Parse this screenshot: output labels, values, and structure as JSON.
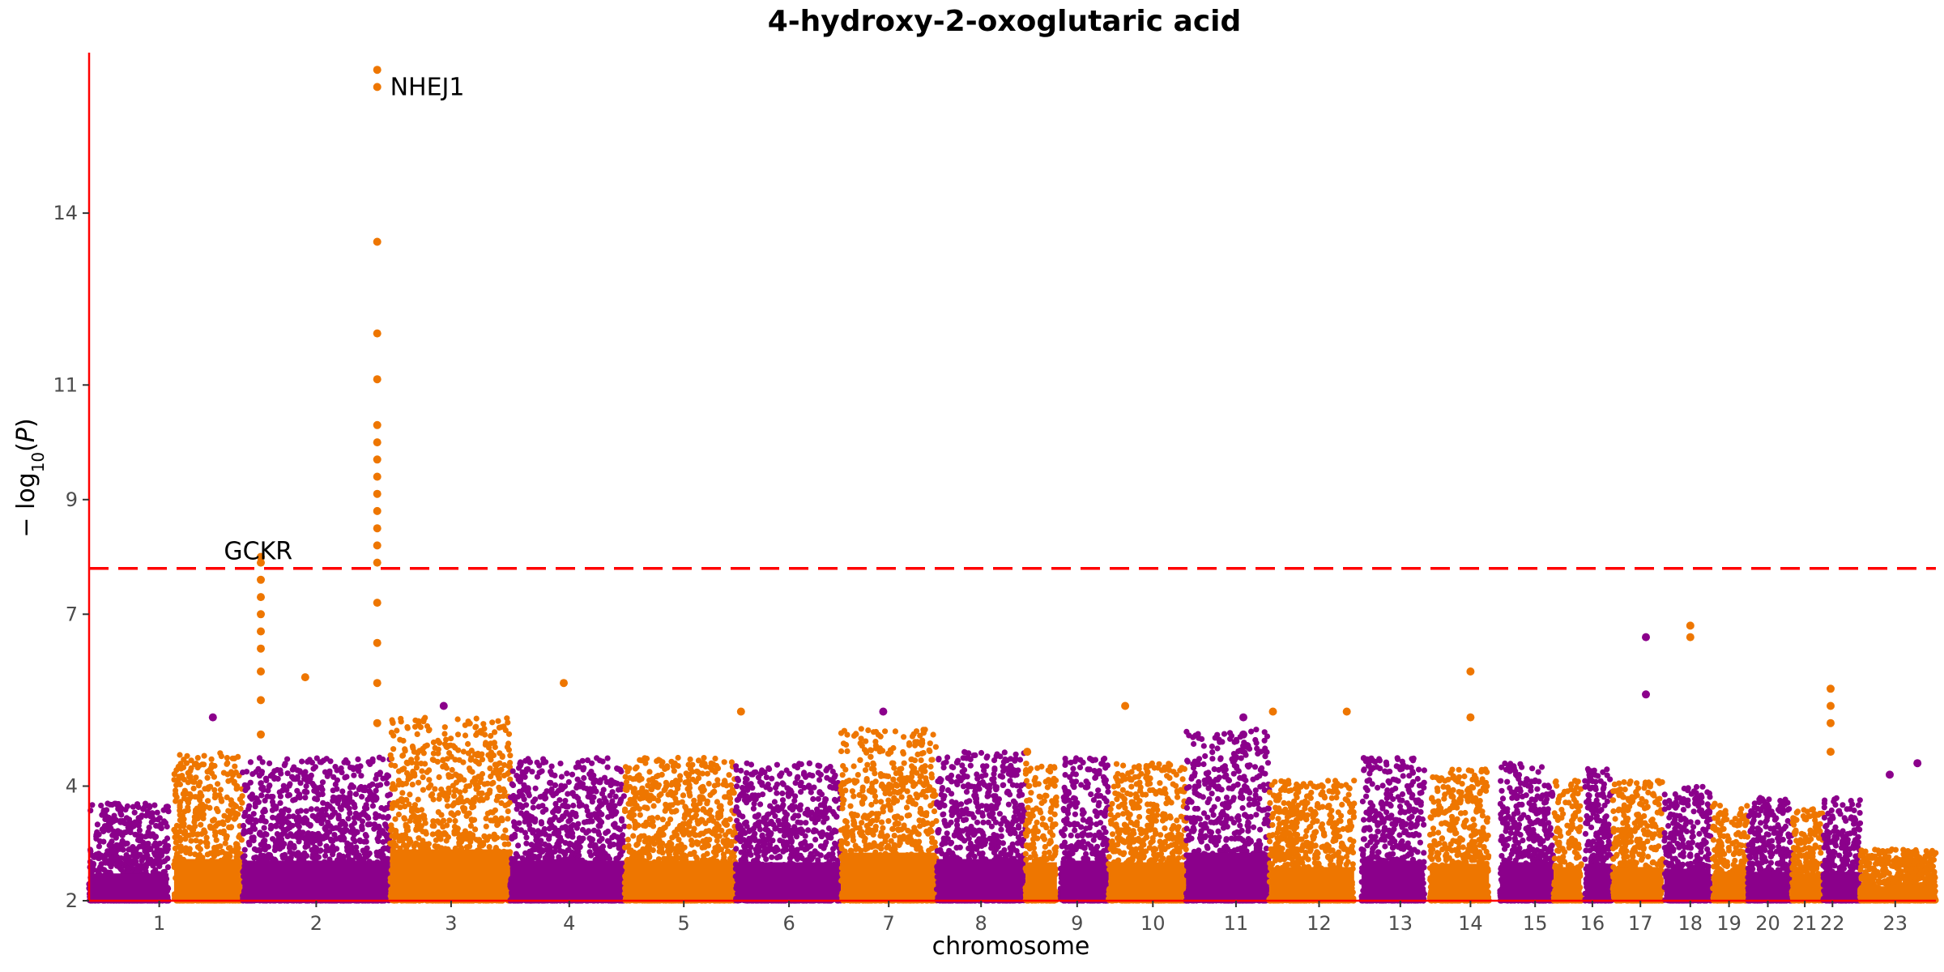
{
  "chart_data": {
    "type": "scatter",
    "subtype": "manhattan",
    "title": "4-hydroxy-2-oxoglutaric acid",
    "xlabel": "chromosome",
    "ylabel": "−log10(P)",
    "ylim": [
      2,
      16.8
    ],
    "yticks": [
      2,
      4,
      7,
      9,
      11,
      14
    ],
    "significance_line": 7.8,
    "colors": {
      "odd": "#8B008B",
      "even": "#EE7600",
      "axis": "#ff0000",
      "threshold": "#ff0000"
    },
    "chromosomes": [
      {
        "label": "1",
        "min": 2,
        "max": 3.7,
        "x_start": 0,
        "x_end": 4.3
      },
      {
        "label": "",
        "min": 2,
        "max": 4.6,
        "x_start": 4.6,
        "x_end": 8.3
      },
      {
        "label": "2",
        "min": 2,
        "max": 4.5,
        "x_start": 8.3,
        "x_end": 16.3
      },
      {
        "label": "3",
        "min": 2,
        "max": 5.2,
        "x_start": 16.3,
        "x_end": 22.8
      },
      {
        "label": "4",
        "min": 2,
        "max": 4.5,
        "x_start": 22.8,
        "x_end": 29.0
      },
      {
        "label": "5",
        "min": 2,
        "max": 4.5,
        "x_start": 29.0,
        "x_end": 35.0
      },
      {
        "label": "6",
        "min": 2,
        "max": 4.4,
        "x_start": 35.0,
        "x_end": 40.7
      },
      {
        "label": "7",
        "min": 2,
        "max": 5.0,
        "x_start": 40.7,
        "x_end": 45.9
      },
      {
        "label": "8",
        "min": 2,
        "max": 4.6,
        "x_start": 45.9,
        "x_end": 50.7
      },
      {
        "label": "",
        "min": 2,
        "max": 4.4,
        "x_start": 50.7,
        "x_end": 52.4
      },
      {
        "label": "9",
        "min": 2,
        "max": 4.5,
        "x_start": 52.6,
        "x_end": 55.2
      },
      {
        "label": "10",
        "min": 2,
        "max": 4.4,
        "x_start": 55.2,
        "x_end": 59.4
      },
      {
        "label": "11",
        "min": 2,
        "max": 5.0,
        "x_start": 59.4,
        "x_end": 63.9
      },
      {
        "label": "12",
        "min": 2,
        "max": 4.1,
        "x_start": 63.9,
        "x_end": 68.5
      },
      {
        "label": "13",
        "min": 2,
        "max": 4.5,
        "x_start": 68.9,
        "x_end": 72.3
      },
      {
        "label": "14",
        "min": 2,
        "max": 4.3,
        "x_start": 72.6,
        "x_end": 75.8
      },
      {
        "label": "15",
        "min": 2,
        "max": 4.4,
        "x_start": 76.4,
        "x_end": 79.3
      },
      {
        "label": "",
        "min": 2,
        "max": 4.1,
        "x_start": 79.3,
        "x_end": 80.8
      },
      {
        "label": "16",
        "min": 2,
        "max": 4.3,
        "x_start": 81.0,
        "x_end": 82.5
      },
      {
        "label": "17",
        "min": 2,
        "max": 4.1,
        "x_start": 82.5,
        "x_end": 85.2
      },
      {
        "label": "18",
        "min": 2,
        "max": 4.0,
        "x_start": 85.3,
        "x_end": 87.8
      },
      {
        "label": "19",
        "min": 2,
        "max": 3.7,
        "x_start": 87.9,
        "x_end": 89.8
      },
      {
        "label": "20",
        "min": 2,
        "max": 3.8,
        "x_start": 89.8,
        "x_end": 92.2
      },
      {
        "label": "21",
        "min": 2,
        "max": 3.6,
        "x_start": 92.2,
        "x_end": 93.9
      },
      {
        "label": "22",
        "min": 2,
        "max": 3.8,
        "x_start": 93.9,
        "x_end": 95.9
      },
      {
        "label": "23",
        "min": 2,
        "max": 2.9,
        "x_start": 95.9,
        "x_end": 100
      }
    ],
    "xtick_labels": [
      {
        "label": "1",
        "x": 3.8
      },
      {
        "label": "2",
        "x": 12.3
      },
      {
        "label": "3",
        "x": 19.6
      },
      {
        "label": "4",
        "x": 26.0
      },
      {
        "label": "5",
        "x": 32.2
      },
      {
        "label": "6",
        "x": 37.9
      },
      {
        "label": "7",
        "x": 43.3
      },
      {
        "label": "8",
        "x": 48.3
      },
      {
        "label": "9",
        "x": 53.5
      },
      {
        "label": "10",
        "x": 57.6
      },
      {
        "label": "11",
        "x": 62.1
      },
      {
        "label": "12",
        "x": 66.6
      },
      {
        "label": "13",
        "x": 71.0
      },
      {
        "label": "14",
        "x": 74.8
      },
      {
        "label": "15",
        "x": 78.3
      },
      {
        "label": "16",
        "x": 81.4
      },
      {
        "label": "17",
        "x": 84.0
      },
      {
        "label": "18",
        "x": 86.7
      },
      {
        "label": "19",
        "x": 88.8
      },
      {
        "label": "20",
        "x": 90.9
      },
      {
        "label": "21",
        "x": 92.9
      },
      {
        "label": "22",
        "x": 94.4
      },
      {
        "label": "23",
        "x": 97.8
      }
    ],
    "notable_points": [
      {
        "x": 15.6,
        "y": 16.5,
        "series": "even"
      },
      {
        "x": 15.6,
        "y": 16.2,
        "series": "even"
      },
      {
        "x": 15.6,
        "y": 13.5,
        "series": "even"
      },
      {
        "x": 15.6,
        "y": 11.9,
        "series": "even"
      },
      {
        "x": 15.6,
        "y": 11.1,
        "series": "even"
      },
      {
        "x": 15.6,
        "y": 10.3,
        "series": "even"
      },
      {
        "x": 15.6,
        "y": 10.0,
        "series": "even"
      },
      {
        "x": 15.6,
        "y": 9.7,
        "series": "even"
      },
      {
        "x": 15.6,
        "y": 9.4,
        "series": "even"
      },
      {
        "x": 15.6,
        "y": 9.1,
        "series": "even"
      },
      {
        "x": 15.6,
        "y": 8.8,
        "series": "even"
      },
      {
        "x": 15.6,
        "y": 8.5,
        "series": "even"
      },
      {
        "x": 15.6,
        "y": 8.2,
        "series": "even"
      },
      {
        "x": 15.6,
        "y": 7.9,
        "series": "even"
      },
      {
        "x": 15.6,
        "y": 7.2,
        "series": "even"
      },
      {
        "x": 15.6,
        "y": 6.5,
        "series": "even"
      },
      {
        "x": 15.6,
        "y": 5.8,
        "series": "even"
      },
      {
        "x": 15.6,
        "y": 5.1,
        "series": "even"
      },
      {
        "x": 9.3,
        "y": 8.0,
        "series": "even"
      },
      {
        "x": 9.3,
        "y": 7.9,
        "series": "even"
      },
      {
        "x": 9.3,
        "y": 7.6,
        "series": "even"
      },
      {
        "x": 9.3,
        "y": 7.3,
        "series": "even"
      },
      {
        "x": 9.3,
        "y": 7.0,
        "series": "even"
      },
      {
        "x": 9.3,
        "y": 6.7,
        "series": "even"
      },
      {
        "x": 9.3,
        "y": 6.4,
        "series": "even"
      },
      {
        "x": 9.3,
        "y": 6.0,
        "series": "even"
      },
      {
        "x": 9.3,
        "y": 5.5,
        "series": "even"
      },
      {
        "x": 9.3,
        "y": 4.9,
        "series": "even"
      },
      {
        "x": 94.3,
        "y": 5.7,
        "series": "even"
      },
      {
        "x": 94.3,
        "y": 5.4,
        "series": "even"
      },
      {
        "x": 94.3,
        "y": 5.1,
        "series": "even"
      },
      {
        "x": 94.3,
        "y": 4.6,
        "series": "even"
      },
      {
        "x": 86.7,
        "y": 6.8,
        "series": "even"
      },
      {
        "x": 86.7,
        "y": 6.6,
        "series": "even"
      },
      {
        "x": 84.3,
        "y": 6.6,
        "series": "odd"
      },
      {
        "x": 84.3,
        "y": 5.6,
        "series": "odd"
      },
      {
        "x": 74.8,
        "y": 6.0,
        "series": "even"
      },
      {
        "x": 74.8,
        "y": 5.2,
        "series": "even"
      },
      {
        "x": 62.5,
        "y": 5.2,
        "series": "odd"
      },
      {
        "x": 62.5,
        "y": 4.9,
        "series": "odd"
      },
      {
        "x": 62.7,
        "y": 4.7,
        "series": "odd"
      },
      {
        "x": 25.7,
        "y": 5.8,
        "series": "even"
      },
      {
        "x": 11.7,
        "y": 5.9,
        "series": "even"
      },
      {
        "x": 35.3,
        "y": 5.3,
        "series": "even"
      },
      {
        "x": 56.1,
        "y": 5.4,
        "series": "even"
      },
      {
        "x": 64.1,
        "y": 5.3,
        "series": "even"
      },
      {
        "x": 68.1,
        "y": 5.3,
        "series": "even"
      },
      {
        "x": 19.2,
        "y": 5.4,
        "series": "odd"
      },
      {
        "x": 43.0,
        "y": 5.3,
        "series": "odd"
      },
      {
        "x": 6.7,
        "y": 5.2,
        "series": "odd"
      },
      {
        "x": 99.0,
        "y": 4.4,
        "series": "odd"
      },
      {
        "x": 97.5,
        "y": 4.2,
        "series": "odd"
      },
      {
        "x": 50.8,
        "y": 4.6,
        "series": "even"
      }
    ],
    "annotations": [
      {
        "text": "NHEJ1",
        "x": 16.3,
        "y": 16.2
      },
      {
        "text": "GCKR",
        "x": 7.3,
        "y": 8.1
      }
    ]
  }
}
